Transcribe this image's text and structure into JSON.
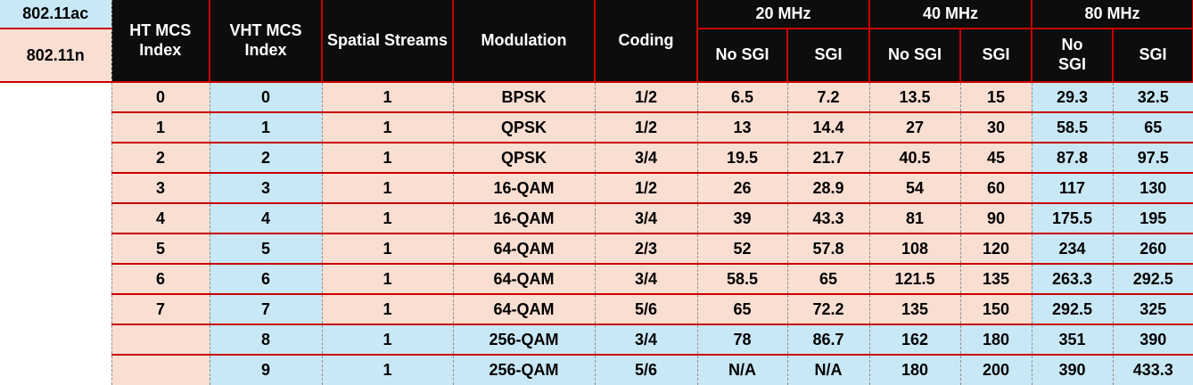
{
  "legend": {
    "row1": "802.11ac",
    "row2": "802.11n"
  },
  "colors": {
    "peach_80211n": "#f9ded2",
    "blue_80211ac": "#c9e8f6",
    "grid_red": "#c90000",
    "separator_gray": "#8f8f8f",
    "header_black": "#0d0d0d"
  },
  "header": {
    "columns": [
      "HT MCS Index",
      "VHT MCS Index",
      "Spatial Streams",
      "Modulation",
      "Coding"
    ],
    "bandwidth_groups": [
      "20 MHz",
      "40 MHz",
      "80 MHz"
    ],
    "sgi_subheaders": [
      "No SGI",
      "SGI",
      "No SGI",
      "SGI",
      "No SGI",
      "SGI"
    ]
  },
  "chart_data": {
    "type": "table",
    "columns": [
      "HT MCS Index",
      "VHT MCS Index",
      "Spatial Streams",
      "Modulation",
      "Coding",
      "20 MHz No SGI",
      "20 MHz SGI",
      "40 MHz No SGI",
      "40 MHz SGI",
      "80 MHz No SGI",
      "80 MHz SGI"
    ],
    "rows": [
      {
        "ht_mcs": "0",
        "vht_mcs": "0",
        "spatial_streams": "1",
        "modulation": "BPSK",
        "coding": "1/2",
        "mbps_20_no_sgi": "6.5",
        "mbps_20_sgi": "7.2",
        "mbps_40_no_sgi": "13.5",
        "mbps_40_sgi": "15",
        "mbps_80_no_sgi": "29.3",
        "mbps_80_sgi": "32.5",
        "ac_only": false
      },
      {
        "ht_mcs": "1",
        "vht_mcs": "1",
        "spatial_streams": "1",
        "modulation": "QPSK",
        "coding": "1/2",
        "mbps_20_no_sgi": "13",
        "mbps_20_sgi": "14.4",
        "mbps_40_no_sgi": "27",
        "mbps_40_sgi": "30",
        "mbps_80_no_sgi": "58.5",
        "mbps_80_sgi": "65",
        "ac_only": false
      },
      {
        "ht_mcs": "2",
        "vht_mcs": "2",
        "spatial_streams": "1",
        "modulation": "QPSK",
        "coding": "3/4",
        "mbps_20_no_sgi": "19.5",
        "mbps_20_sgi": "21.7",
        "mbps_40_no_sgi": "40.5",
        "mbps_40_sgi": "45",
        "mbps_80_no_sgi": "87.8",
        "mbps_80_sgi": "97.5",
        "ac_only": false
      },
      {
        "ht_mcs": "3",
        "vht_mcs": "3",
        "spatial_streams": "1",
        "modulation": "16-QAM",
        "coding": "1/2",
        "mbps_20_no_sgi": "26",
        "mbps_20_sgi": "28.9",
        "mbps_40_no_sgi": "54",
        "mbps_40_sgi": "60",
        "mbps_80_no_sgi": "117",
        "mbps_80_sgi": "130",
        "ac_only": false
      },
      {
        "ht_mcs": "4",
        "vht_mcs": "4",
        "spatial_streams": "1",
        "modulation": "16-QAM",
        "coding": "3/4",
        "mbps_20_no_sgi": "39",
        "mbps_20_sgi": "43.3",
        "mbps_40_no_sgi": "81",
        "mbps_40_sgi": "90",
        "mbps_80_no_sgi": "175.5",
        "mbps_80_sgi": "195",
        "ac_only": false
      },
      {
        "ht_mcs": "5",
        "vht_mcs": "5",
        "spatial_streams": "1",
        "modulation": "64-QAM",
        "coding": "2/3",
        "mbps_20_no_sgi": "52",
        "mbps_20_sgi": "57.8",
        "mbps_40_no_sgi": "108",
        "mbps_40_sgi": "120",
        "mbps_80_no_sgi": "234",
        "mbps_80_sgi": "260",
        "ac_only": false
      },
      {
        "ht_mcs": "6",
        "vht_mcs": "6",
        "spatial_streams": "1",
        "modulation": "64-QAM",
        "coding": "3/4",
        "mbps_20_no_sgi": "58.5",
        "mbps_20_sgi": "65",
        "mbps_40_no_sgi": "121.5",
        "mbps_40_sgi": "135",
        "mbps_80_no_sgi": "263.3",
        "mbps_80_sgi": "292.5",
        "ac_only": false
      },
      {
        "ht_mcs": "7",
        "vht_mcs": "7",
        "spatial_streams": "1",
        "modulation": "64-QAM",
        "coding": "5/6",
        "mbps_20_no_sgi": "65",
        "mbps_20_sgi": "72.2",
        "mbps_40_no_sgi": "135",
        "mbps_40_sgi": "150",
        "mbps_80_no_sgi": "292.5",
        "mbps_80_sgi": "325",
        "ac_only": false
      },
      {
        "ht_mcs": "",
        "vht_mcs": "8",
        "spatial_streams": "1",
        "modulation": "256-QAM",
        "coding": "3/4",
        "mbps_20_no_sgi": "78",
        "mbps_20_sgi": "86.7",
        "mbps_40_no_sgi": "162",
        "mbps_40_sgi": "180",
        "mbps_80_no_sgi": "351",
        "mbps_80_sgi": "390",
        "ac_only": true
      },
      {
        "ht_mcs": "",
        "vht_mcs": "9",
        "spatial_streams": "1",
        "modulation": "256-QAM",
        "coding": "5/6",
        "mbps_20_no_sgi": "N/A",
        "mbps_20_sgi": "N/A",
        "mbps_40_no_sgi": "180",
        "mbps_40_sgi": "200",
        "mbps_80_no_sgi": "390",
        "mbps_80_sgi": "433.3",
        "ac_only": true
      }
    ]
  }
}
